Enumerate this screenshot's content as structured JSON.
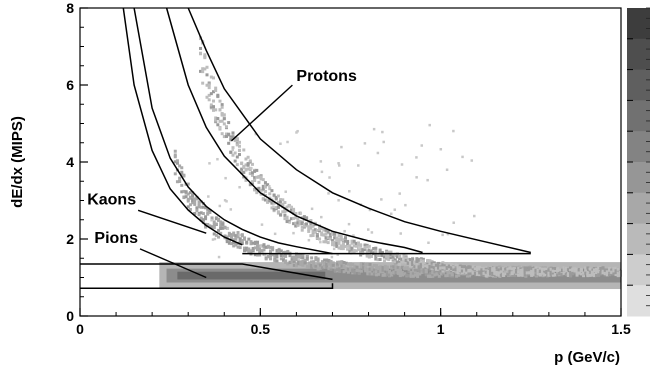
{
  "chart_data": {
    "type": "heatmap",
    "xlabel": "p (GeV/c)",
    "ylabel": "dE/dx (MIPS)",
    "xlim": [
      0,
      1.5
    ],
    "ylim": [
      0,
      8
    ],
    "x_ticks": [
      {
        "value": 0,
        "label": "0"
      },
      {
        "value": 0.5,
        "label": "0.5"
      },
      {
        "value": 1,
        "label": "1"
      },
      {
        "value": 1.5,
        "label": "1.5"
      }
    ],
    "y_ticks": [
      {
        "value": 0,
        "label": "0"
      },
      {
        "value": 2,
        "label": "2"
      },
      {
        "value": 4,
        "label": "4"
      },
      {
        "value": 6,
        "label": "6"
      },
      {
        "value": 8,
        "label": "8"
      }
    ],
    "annotations": [
      {
        "label": "Protons",
        "text_at": [
          0.6,
          6.1
        ],
        "arrow_to": [
          0.42,
          4.55
        ]
      },
      {
        "label": "Kaons",
        "text_at": [
          0.02,
          2.9
        ],
        "arrow_to": [
          0.35,
          2.15
        ]
      },
      {
        "label": "Pions",
        "text_at": [
          0.04,
          1.9
        ],
        "arrow_to": [
          0.35,
          1.0
        ]
      }
    ],
    "bands": [
      {
        "name": "pion-band",
        "p_min": 0.22,
        "p_max": 1.5,
        "y_center": 1.05,
        "y_width": 0.25,
        "color": "#707070"
      },
      {
        "name": "kaon-band",
        "p_min": 0.26,
        "p_max": 1.3,
        "y_center_at_min": 3.6,
        "color": "#a9a9a9"
      },
      {
        "name": "proton-band",
        "p_min": 0.33,
        "p_max": 1.5,
        "y_center_at_min": 6.6,
        "color": "#bdbdbd"
      }
    ],
    "cut_lines": [
      {
        "name": "pion-cut-lower",
        "points": [
          [
            0.0,
            0.72
          ],
          [
            0.7,
            0.72
          ],
          [
            0.7,
            0.85
          ]
        ]
      },
      {
        "name": "pion-cut-upper",
        "points": [
          [
            0.0,
            1.35
          ],
          [
            0.45,
            1.35
          ],
          [
            0.7,
            0.95
          ]
        ]
      },
      {
        "name": "kaon-cut-lower",
        "points": [
          [
            0.12,
            8.0
          ],
          [
            0.15,
            6.0
          ],
          [
            0.2,
            4.3
          ],
          [
            0.25,
            3.3
          ],
          [
            0.3,
            2.75
          ],
          [
            0.35,
            2.35
          ],
          [
            0.4,
            2.05
          ],
          [
            0.45,
            1.85
          ]
        ]
      },
      {
        "name": "kaon-cut-upper",
        "points": [
          [
            0.15,
            8.0
          ],
          [
            0.2,
            5.4
          ],
          [
            0.25,
            4.1
          ],
          [
            0.3,
            3.35
          ],
          [
            0.35,
            2.85
          ],
          [
            0.4,
            2.5
          ],
          [
            0.45,
            2.25
          ],
          [
            0.5,
            2.05
          ],
          [
            0.55,
            1.9
          ],
          [
            0.6,
            1.8
          ],
          [
            0.7,
            1.62
          ]
        ]
      },
      {
        "name": "kaon-cut-floor",
        "points": [
          [
            0.45,
            1.62
          ],
          [
            0.7,
            1.62
          ]
        ]
      },
      {
        "name": "proton-cut-lower",
        "points": [
          [
            0.24,
            8.0
          ],
          [
            0.3,
            6.0
          ],
          [
            0.35,
            4.9
          ],
          [
            0.4,
            4.15
          ],
          [
            0.5,
            3.2
          ],
          [
            0.6,
            2.6
          ],
          [
            0.7,
            2.2
          ],
          [
            0.8,
            1.95
          ],
          [
            0.9,
            1.78
          ],
          [
            0.95,
            1.65
          ]
        ]
      },
      {
        "name": "proton-cut-upper",
        "points": [
          [
            0.3,
            8.0
          ],
          [
            0.35,
            6.9
          ],
          [
            0.4,
            5.9
          ],
          [
            0.5,
            4.6
          ],
          [
            0.6,
            3.8
          ],
          [
            0.7,
            3.2
          ],
          [
            0.8,
            2.8
          ],
          [
            0.9,
            2.45
          ],
          [
            1.0,
            2.2
          ],
          [
            1.1,
            1.98
          ],
          [
            1.25,
            1.65
          ]
        ]
      },
      {
        "name": "proton-cut-floor",
        "points": [
          [
            0.7,
            1.62
          ],
          [
            1.25,
            1.62
          ]
        ]
      }
    ],
    "color_scale": [
      "#3d3d3d",
      "#4e4e4e",
      "#5f5f5f",
      "#717171",
      "#838383",
      "#969696",
      "#a8a8a8",
      "#bababa",
      "#cdcdcd",
      "#dfdfdf"
    ],
    "grid": false,
    "legend": "none"
  }
}
